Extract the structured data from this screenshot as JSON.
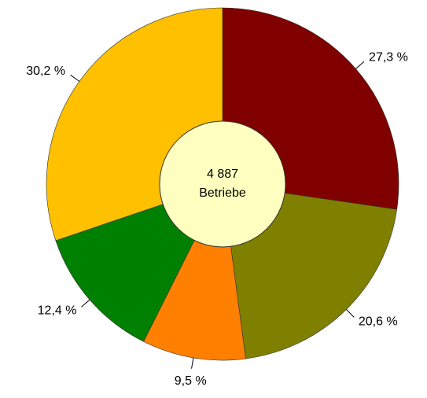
{
  "chart_data": {
    "type": "donut",
    "values": [
      27.3,
      20.6,
      9.5,
      12.4,
      30.2
    ],
    "value_labels": [
      "27,3 %",
      "20,6 %",
      "9,5 %",
      "12,4 %",
      "30,2 %"
    ],
    "colors": [
      "#800000",
      "#808000",
      "#ff8000",
      "#008000",
      "#ffc000"
    ],
    "center_label": [
      "4 887",
      "Betriebe"
    ]
  }
}
